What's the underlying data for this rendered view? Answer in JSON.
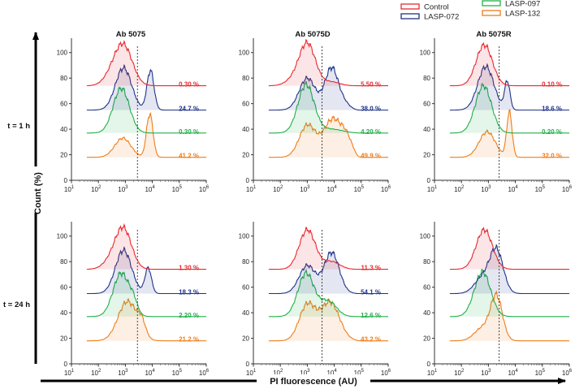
{
  "chart_data": {
    "type": "histogram-overlay",
    "xlabel": "PI fluorescence (AU)",
    "ylabel": "Count (%)",
    "xscale": "log",
    "xlim": [
      10,
      1000000
    ],
    "ylim": [
      0,
      110
    ],
    "x_tick_labels": [
      "10",
      "10",
      "10",
      "10",
      "10",
      "10"
    ],
    "x_tick_exponents": [
      "1",
      "2",
      "3",
      "4",
      "5",
      "6"
    ],
    "y_tick_labels": [
      "0",
      "20",
      "40",
      "60",
      "80",
      "100"
    ],
    "legend": [
      {
        "name": "Control",
        "color": "#e8282f"
      },
      {
        "name": "LASP-072",
        "color": "#1f3389"
      },
      {
        "name": "LASP-097",
        "color": "#22b04a"
      },
      {
        "name": "LASP-132",
        "color": "#ef7d1a"
      }
    ],
    "columns": [
      "Ab 5075",
      "Ab 5075D",
      "Ab 5075R"
    ],
    "rows": [
      "t = 1 h",
      "t = 24 h"
    ],
    "panels": [
      {
        "row": 0,
        "col": 0,
        "gate_x": 2800,
        "series": [
          {
            "name": "Control",
            "baseline": 74,
            "percent_label": "0.30 %",
            "peaks": [
              [
                850,
                31,
                0.33
              ],
              [
                300,
                6,
                0.3
              ]
            ]
          },
          {
            "name": "LASP-072",
            "baseline": 55,
            "percent_label": "24.7 %",
            "peaks": [
              [
                850,
                33,
                0.3
              ],
              [
                8500,
                31,
                0.13
              ]
            ]
          },
          {
            "name": "LASP-097",
            "baseline": 37,
            "percent_label": "0.30 %",
            "peaks": [
              [
                700,
                35,
                0.3
              ]
            ]
          },
          {
            "name": "LASP-132",
            "baseline": 18,
            "percent_label": "41.2 %",
            "peaks": [
              [
                800,
                15,
                0.3
              ],
              [
                8000,
                34,
                0.12
              ]
            ]
          }
        ]
      },
      {
        "row": 0,
        "col": 1,
        "gate_x": 3500,
        "series": [
          {
            "name": "Control",
            "baseline": 74,
            "percent_label": "5.50 %",
            "peaks": [
              [
                1000,
                33,
                0.3
              ],
              [
                300,
                4,
                0.3
              ],
              [
                8000,
                3,
                0.3
              ]
            ]
          },
          {
            "name": "LASP-072",
            "baseline": 55,
            "percent_label": "38.0 %",
            "peaks": [
              [
                1000,
                25,
                0.3
              ],
              [
                8000,
                33,
                0.25
              ],
              [
                25000,
                4,
                0.2
              ]
            ]
          },
          {
            "name": "LASP-097",
            "baseline": 37,
            "percent_label": "4.20 %",
            "peaks": [
              [
                900,
                38,
                0.3
              ],
              [
                8000,
                3,
                0.4
              ]
            ]
          },
          {
            "name": "LASP-132",
            "baseline": 18,
            "percent_label": "49.9 %",
            "peaks": [
              [
                1000,
                25,
                0.3
              ],
              [
                9000,
                30,
                0.35
              ],
              [
                30000,
                10,
                0.2
              ]
            ]
          }
        ]
      },
      {
        "row": 0,
        "col": 2,
        "gate_x": 2500,
        "series": [
          {
            "name": "Control",
            "baseline": 74,
            "percent_label": "0.10 %",
            "peaks": [
              [
                700,
                32,
                0.3
              ]
            ]
          },
          {
            "name": "LASP-072",
            "baseline": 55,
            "percent_label": "18.6 %",
            "peaks": [
              [
                800,
                34,
                0.3
              ],
              [
                5000,
                22,
                0.1
              ]
            ]
          },
          {
            "name": "LASP-097",
            "baseline": 37,
            "percent_label": "0.20 %",
            "peaks": [
              [
                650,
                37,
                0.3
              ]
            ]
          },
          {
            "name": "LASP-132",
            "baseline": 18,
            "percent_label": "32.0 %",
            "peaks": [
              [
                900,
                20,
                0.3
              ],
              [
                6000,
                35,
                0.1
              ]
            ]
          }
        ]
      },
      {
        "row": 1,
        "col": 0,
        "gate_x": 2800,
        "series": [
          {
            "name": "Control",
            "baseline": 74,
            "percent_label": "1.30 %",
            "peaks": [
              [
                850,
                31,
                0.3
              ],
              [
                300,
                6,
                0.3
              ]
            ]
          },
          {
            "name": "LASP-072",
            "baseline": 55,
            "percent_label": "18.3 %",
            "peaks": [
              [
                850,
                34,
                0.3
              ],
              [
                7000,
                20,
                0.12
              ]
            ]
          },
          {
            "name": "LASP-097",
            "baseline": 37,
            "percent_label": "2.20 %",
            "peaks": [
              [
                700,
                34,
                0.3
              ],
              [
                2000,
                8,
                0.15
              ]
            ]
          },
          {
            "name": "LASP-132",
            "baseline": 18,
            "percent_label": "21.2 %",
            "peaks": [
              [
                1200,
                31,
                0.35
              ],
              [
                4000,
                10,
                0.15
              ]
            ]
          }
        ]
      },
      {
        "row": 1,
        "col": 1,
        "gate_x": 3500,
        "series": [
          {
            "name": "Control",
            "baseline": 74,
            "percent_label": "11.3 %",
            "peaks": [
              [
                1000,
                31,
                0.3
              ],
              [
                8000,
                6,
                0.3
              ]
            ]
          },
          {
            "name": "LASP-072",
            "baseline": 55,
            "percent_label": "54.1 %",
            "peaks": [
              [
                1000,
                22,
                0.3
              ],
              [
                8000,
                32,
                0.28
              ]
            ]
          },
          {
            "name": "LASP-097",
            "baseline": 37,
            "percent_label": "12.6 %",
            "peaks": [
              [
                900,
                34,
                0.3
              ],
              [
                6000,
                12,
                0.3
              ]
            ]
          },
          {
            "name": "LASP-132",
            "baseline": 18,
            "percent_label": "43.2 %",
            "peaks": [
              [
                1000,
                28,
                0.3
              ],
              [
                7000,
                30,
                0.35
              ]
            ]
          }
        ]
      },
      {
        "row": 1,
        "col": 2,
        "gate_x": 2500,
        "series": [
          {
            "name": "Control",
            "baseline": 74,
            "percent_label": "",
            "peaks": [
              [
                700,
                31,
                0.3
              ]
            ]
          },
          {
            "name": "LASP-072",
            "baseline": 55,
            "percent_label": "",
            "peaks": [
              [
                2000,
                33,
                0.25
              ],
              [
                600,
                12,
                0.3
              ]
            ]
          },
          {
            "name": "LASP-097",
            "baseline": 37,
            "percent_label": "",
            "peaks": [
              [
                600,
                35,
                0.3
              ]
            ]
          },
          {
            "name": "LASP-132",
            "baseline": 18,
            "percent_label": "",
            "peaks": [
              [
                2000,
                34,
                0.22
              ],
              [
                600,
                10,
                0.3
              ]
            ]
          }
        ]
      }
    ]
  }
}
